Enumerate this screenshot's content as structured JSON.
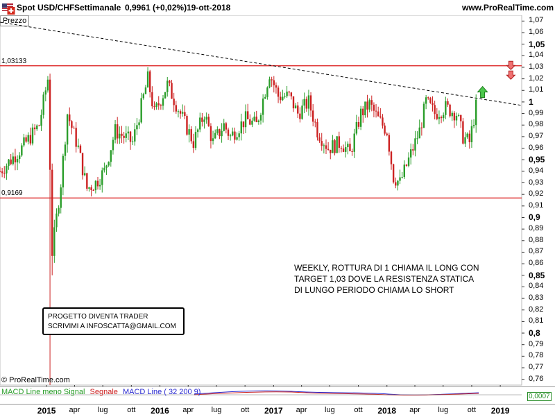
{
  "header": {
    "symbol": "Spot USD/CHF",
    "period": "Settimanale",
    "quote": "0,9961 (+0,02%)",
    "date": "19-ott-2018",
    "brand": "www.ProRealTime.com"
  },
  "price_panel": {
    "label": "Prezzo"
  },
  "annotations": {
    "text_line1": "WEEKLY, ROTTURA DI 1 CHIAMA IL LONG CON",
    "text_line2": "TARGET 1,03 DOVE LA RESISTENZA STATICA",
    "text_line3": "DI LUNGO PERIODO CHIAMA LO SHORT",
    "promo_line1": "PROGETTO DIVENTA TRADER",
    "promo_line2": "SCRIVIMI A INFOSCATTA@GMAIL.COM",
    "footer_brand": "© ProRealTime.com"
  },
  "indicator": {
    "legend_macd_minus_signal": "MACD Line meno Signal",
    "legend_signal": "Segnale",
    "legend_macd": "MACD Line ( 32 200 9)",
    "value": "0,0007"
  },
  "colors": {
    "up": "#2a9d2a",
    "down": "#cc2222",
    "resistance": "#e03a3a",
    "trendline": "#000000",
    "macd": "#2b2bd0",
    "signal": "#cc2222"
  },
  "chart_data": {
    "type": "candlestick",
    "title": "Spot USD/CHF",
    "timeframe": "Settimanale",
    "ylim": [
      0.755,
      1.075
    ],
    "y_ticks": [
      "1,07",
      "1,06",
      "1,05",
      "1,04",
      "1,03",
      "1,02",
      "1,01",
      "1",
      "0,99",
      "0,98",
      "0,97",
      "0,96",
      "0,95",
      "0,94",
      "0,93",
      "0,92",
      "0,91",
      "0,9",
      "0,89",
      "0,88",
      "0,87",
      "0,86",
      "0,85",
      "0,84",
      "0,83",
      "0,82",
      "0,81",
      "0,8",
      "0,79",
      "0,78",
      "0,77",
      "0,76"
    ],
    "y_major_ticks": [
      "1,05",
      "1",
      "0,95",
      "0,9",
      "0,85",
      "0,8"
    ],
    "x_ticks": [
      {
        "label": "2015",
        "date": "2015-01-01",
        "major": true
      },
      {
        "label": "apr",
        "date": "2015-04-01",
        "major": false
      },
      {
        "label": "lug",
        "date": "2015-07-01",
        "major": false
      },
      {
        "label": "ott",
        "date": "2015-10-01",
        "major": false
      },
      {
        "label": "2016",
        "date": "2016-01-01",
        "major": true
      },
      {
        "label": "apr",
        "date": "2016-04-01",
        "major": false
      },
      {
        "label": "lug",
        "date": "2016-07-01",
        "major": false
      },
      {
        "label": "ott",
        "date": "2016-10-01",
        "major": false
      },
      {
        "label": "2017",
        "date": "2017-01-01",
        "major": true
      },
      {
        "label": "apr",
        "date": "2017-04-01",
        "major": false
      },
      {
        "label": "lug",
        "date": "2017-07-01",
        "major": false
      },
      {
        "label": "ott",
        "date": "2017-10-01",
        "major": false
      },
      {
        "label": "2018",
        "date": "2018-01-01",
        "major": true
      },
      {
        "label": "apr",
        "date": "2018-04-01",
        "major": false
      },
      {
        "label": "lug",
        "date": "2018-07-01",
        "major": false
      },
      {
        "label": "ott",
        "date": "2018-10-01",
        "major": false
      },
      {
        "label": "2019",
        "date": "2019-01-01",
        "major": true
      }
    ],
    "x_range": [
      "2014-08-04",
      "2019-03-11"
    ],
    "horizontal_levels": [
      {
        "label": "1,03133",
        "value": 1.03133
      },
      {
        "label": "0,9169",
        "value": 0.9169
      }
    ],
    "trendline": [
      {
        "date": "2014-08-04",
        "value": 1.069
      },
      {
        "date": "2019-03-11",
        "value": 0.997
      }
    ],
    "markers": [
      {
        "type": "down-arrow",
        "date": "2019-02-04",
        "value": 1.022
      },
      {
        "type": "up-arrow",
        "date": "2018-11-05",
        "value": 1.008
      }
    ],
    "series_close_path": [
      {
        "date": "2014-08-04",
        "value": 0.94
      },
      {
        "date": "2014-10-13",
        "value": 0.96
      },
      {
        "date": "2014-12-08",
        "value": 0.98
      },
      {
        "date": "2015-01-05",
        "value": 1.02
      },
      {
        "date": "2015-01-19",
        "value": 0.87
      },
      {
        "date": "2015-02-16",
        "value": 0.93
      },
      {
        "date": "2015-03-09",
        "value": 0.99
      },
      {
        "date": "2015-04-13",
        "value": 0.96
      },
      {
        "date": "2015-05-11",
        "value": 0.925
      },
      {
        "date": "2015-06-08",
        "value": 0.93
      },
      {
        "date": "2015-07-06",
        "value": 0.94
      },
      {
        "date": "2015-08-10",
        "value": 0.975
      },
      {
        "date": "2015-09-07",
        "value": 0.97
      },
      {
        "date": "2015-10-05",
        "value": 0.965
      },
      {
        "date": "2015-11-23",
        "value": 1.02
      },
      {
        "date": "2015-12-14",
        "value": 0.99
      },
      {
        "date": "2016-01-25",
        "value": 1.015
      },
      {
        "date": "2016-03-07",
        "value": 0.99
      },
      {
        "date": "2016-04-18",
        "value": 0.965
      },
      {
        "date": "2016-05-23",
        "value": 0.99
      },
      {
        "date": "2016-06-20",
        "value": 0.965
      },
      {
        "date": "2016-07-25",
        "value": 0.98
      },
      {
        "date": "2016-08-15",
        "value": 0.97
      },
      {
        "date": "2016-10-03",
        "value": 0.985
      },
      {
        "date": "2016-11-07",
        "value": 0.98
      },
      {
        "date": "2016-12-19",
        "value": 1.025
      },
      {
        "date": "2017-01-16",
        "value": 1.005
      },
      {
        "date": "2017-02-20",
        "value": 1.005
      },
      {
        "date": "2017-03-20",
        "value": 0.99
      },
      {
        "date": "2017-04-24",
        "value": 1.0
      },
      {
        "date": "2017-05-22",
        "value": 0.975
      },
      {
        "date": "2017-06-26",
        "value": 0.96
      },
      {
        "date": "2017-08-07",
        "value": 0.965
      },
      {
        "date": "2017-09-04",
        "value": 0.955
      },
      {
        "date": "2017-10-09",
        "value": 0.99
      },
      {
        "date": "2017-11-06",
        "value": 0.998
      },
      {
        "date": "2017-12-04",
        "value": 0.985
      },
      {
        "date": "2018-01-01",
        "value": 0.975
      },
      {
        "date": "2018-01-22",
        "value": 0.935
      },
      {
        "date": "2018-02-12",
        "value": 0.93
      },
      {
        "date": "2018-03-12",
        "value": 0.95
      },
      {
        "date": "2018-04-16",
        "value": 0.975
      },
      {
        "date": "2018-05-07",
        "value": 1.0
      },
      {
        "date": "2018-06-04",
        "value": 0.99
      },
      {
        "date": "2018-07-09",
        "value": 0.995
      },
      {
        "date": "2018-08-13",
        "value": 0.99
      },
      {
        "date": "2018-09-03",
        "value": 0.97
      },
      {
        "date": "2018-09-24",
        "value": 0.965
      },
      {
        "date": "2018-10-15",
        "value": 0.996
      }
    ]
  }
}
